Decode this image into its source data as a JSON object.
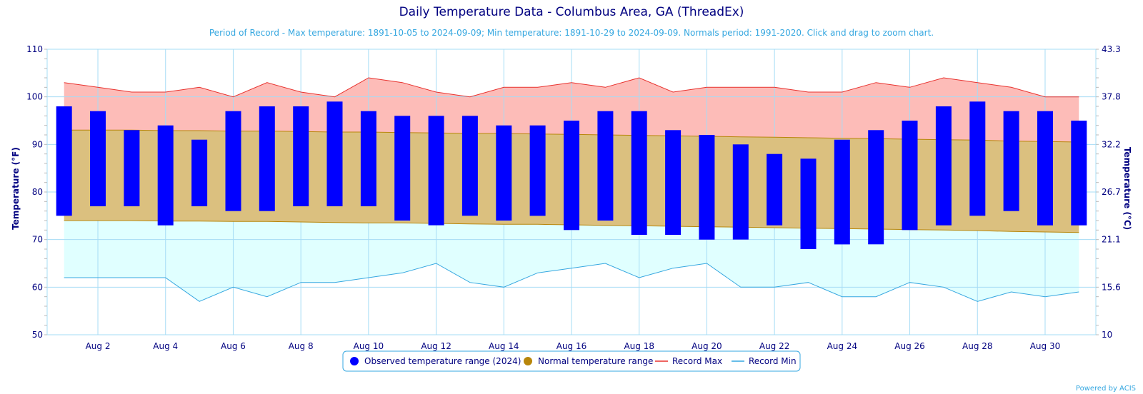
{
  "chart_data": {
    "type": "bar",
    "title": "Daily Temperature Data - Columbus Area, GA (ThreadEx)",
    "subtitle": "Period of Record - Max temperature: 1891-10-05 to 2024-09-09; Min temperature: 1891-10-29 to 2024-09-09. Normals period: 1991-2020. Click and drag to zoom chart.",
    "ylabel_left": "Temperature (°F)",
    "ylabel_right": "Temperature (°C)",
    "ylim": [
      50,
      110
    ],
    "y_ticks_left": [
      "50",
      "60",
      "70",
      "80",
      "90",
      "100",
      "110"
    ],
    "y_ticks_right": [
      "10",
      "15.6",
      "21.1",
      "26.7",
      "32.2",
      "37.8",
      "43.3"
    ],
    "x_ticks": [
      "Aug 2",
      "Aug 4",
      "Aug 6",
      "Aug 8",
      "Aug 10",
      "Aug 12",
      "Aug 14",
      "Aug 16",
      "Aug 18",
      "Aug 20",
      "Aug 22",
      "Aug 24",
      "Aug 26",
      "Aug 28",
      "Aug 30"
    ],
    "x_tick_days": [
      2,
      4,
      6,
      8,
      10,
      12,
      14,
      16,
      18,
      20,
      22,
      24,
      26,
      28,
      30
    ],
    "days": [
      1,
      2,
      3,
      4,
      5,
      6,
      7,
      8,
      9,
      10,
      11,
      12,
      13,
      14,
      15,
      16,
      17,
      18,
      19,
      20,
      21,
      22,
      23,
      24,
      25,
      26,
      27,
      28,
      29,
      30,
      31
    ],
    "grid": true,
    "legend_position": "bottom-center",
    "series": [
      {
        "name": "Observed temperature range (2024)",
        "type": "range-bar",
        "color": "#0000ff",
        "low": [
          75,
          77,
          77,
          73,
          77,
          76,
          76,
          77,
          77,
          77,
          74,
          73,
          75,
          74,
          75,
          72,
          74,
          71,
          71,
          70,
          70,
          73,
          68,
          69,
          69,
          72,
          73,
          75,
          76,
          73,
          73
        ],
        "high": [
          98,
          97,
          93,
          94,
          91,
          97,
          98,
          98,
          99,
          97,
          96,
          96,
          96,
          94,
          94,
          95,
          97,
          97,
          93,
          92,
          90,
          88,
          87,
          91,
          93,
          95,
          98,
          99,
          97,
          97,
          95
        ]
      },
      {
        "name": "Normal temperature range",
        "type": "area-range",
        "color": "#b8860b",
        "fill": "#dbc07f",
        "low": [
          74,
          74,
          74,
          73.9,
          73.9,
          73.8,
          73.8,
          73.7,
          73.6,
          73.5,
          73.5,
          73.4,
          73.3,
          73.2,
          73.2,
          73.1,
          73,
          72.9,
          72.8,
          72.7,
          72.6,
          72.5,
          72.4,
          72.3,
          72.2,
          72.1,
          72,
          71.9,
          71.7,
          71.6,
          71.5
        ],
        "high": [
          93,
          93,
          93,
          92.9,
          92.9,
          92.8,
          92.8,
          92.7,
          92.6,
          92.6,
          92.5,
          92.4,
          92.3,
          92.3,
          92.2,
          92.1,
          92,
          91.9,
          91.8,
          91.7,
          91.6,
          91.5,
          91.4,
          91.3,
          91.2,
          91.1,
          91,
          90.9,
          90.7,
          90.6,
          90.5
        ]
      },
      {
        "name": "Record Max",
        "type": "line",
        "color": "#e8322e",
        "fill": "#fdbcb8",
        "values": [
          103,
          102,
          101,
          101,
          102,
          100,
          103,
          101,
          100,
          104,
          103,
          101,
          100,
          102,
          102,
          103,
          102,
          104,
          101,
          102,
          102,
          102,
          101,
          101,
          103,
          102,
          104,
          103,
          102,
          100,
          100
        ]
      },
      {
        "name": "Record Min",
        "type": "line",
        "color": "#35a7e0",
        "fill": "#e0ffff",
        "values": [
          62,
          62,
          62,
          62,
          57,
          60,
          58,
          61,
          61,
          62,
          63,
          65,
          61,
          60,
          63,
          64,
          65,
          62,
          64,
          65,
          60,
          60,
          61,
          58,
          58,
          61,
          60,
          57,
          59,
          58,
          59
        ]
      }
    ],
    "legend": [
      {
        "label": "Observed temperature range (2024)",
        "symbol": "circle",
        "color": "#0000ff"
      },
      {
        "label": "Normal temperature range",
        "symbol": "circle",
        "color": "#b8860b"
      },
      {
        "label": "Record Max",
        "symbol": "line",
        "color": "#e8322e"
      },
      {
        "label": "Record Min",
        "symbol": "line",
        "color": "#35a7e0"
      }
    ],
    "credit": "Powered by ACIS"
  }
}
